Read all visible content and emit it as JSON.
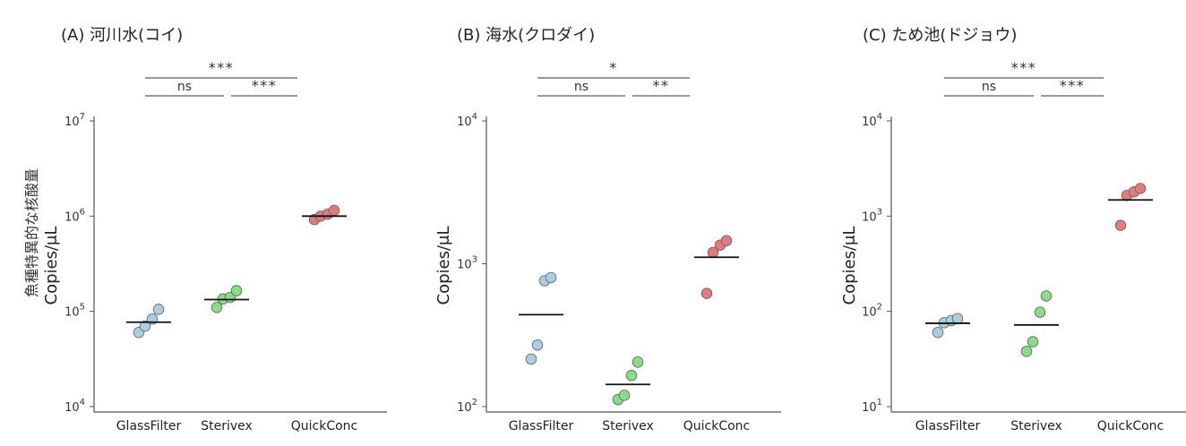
{
  "figure": {
    "shared_ylabel": "魚種特異的な核酸量"
  },
  "chart_data": [
    {
      "type": "scatter",
      "title": "(A) 河川水(コイ)",
      "xlabel": "",
      "ylabel": "Copies/μL",
      "y_scale": "log",
      "ylim_exp": [
        4,
        7
      ],
      "yticks_exp": [
        4,
        5,
        6,
        7
      ],
      "categories": [
        "GlassFilter",
        "Sterivex",
        "QuickConc"
      ],
      "colors": [
        "#a9cfe0",
        "#86df82",
        "#e47a7a"
      ],
      "points": [
        [
          60000,
          70000,
          83000,
          105000
        ],
        [
          110000,
          135000,
          140000,
          165000
        ],
        [
          920000,
          1000000,
          1050000,
          1150000
        ]
      ],
      "means": [
        77000,
        133000,
        1000000
      ],
      "significance": [
        {
          "from": 0,
          "to": 1,
          "label": "ns",
          "level": 1
        },
        {
          "from": 1,
          "to": 2,
          "label": "***",
          "level": 1
        },
        {
          "from": 0,
          "to": 2,
          "label": "***",
          "level": 2
        }
      ]
    },
    {
      "type": "scatter",
      "title": "(B) 海水(クロダイ)",
      "xlabel": "",
      "ylabel": "Copies/μL",
      "y_scale": "log",
      "ylim_exp": [
        2,
        4
      ],
      "yticks_exp": [
        2,
        3,
        4
      ],
      "categories": [
        "GlassFilter",
        "Sterivex",
        "QuickConc"
      ],
      "colors": [
        "#a9cfe0",
        "#86df82",
        "#e47a7a"
      ],
      "points": [
        [
          215,
          270,
          760,
          800
        ],
        [
          112,
          120,
          165,
          205
        ],
        [
          620,
          1200,
          1350,
          1450
        ]
      ],
      "means": [
        440,
        143,
        1110
      ],
      "significance": [
        {
          "from": 0,
          "to": 1,
          "label": "ns",
          "level": 1
        },
        {
          "from": 1,
          "to": 2,
          "label": "**",
          "level": 1
        },
        {
          "from": 0,
          "to": 2,
          "label": "*",
          "level": 2
        }
      ]
    },
    {
      "type": "scatter",
      "title": "(C) ため池(ドジョウ)",
      "xlabel": "",
      "ylabel": "Copies/μL",
      "y_scale": "log",
      "ylim_exp": [
        1,
        4
      ],
      "yticks_exp": [
        1,
        2,
        3,
        4
      ],
      "categories": [
        "GlassFilter",
        "Sterivex",
        "QuickConc"
      ],
      "colors": [
        "#a9cfe0",
        "#86df82",
        "#e47a7a"
      ],
      "points": [
        [
          60,
          76,
          80,
          84
        ],
        [
          38,
          48,
          98,
          145
        ],
        [
          800,
          1650,
          1800,
          1950
        ]
      ],
      "means": [
        75,
        72,
        1480
      ],
      "significance": [
        {
          "from": 0,
          "to": 1,
          "label": "ns",
          "level": 1
        },
        {
          "from": 1,
          "to": 2,
          "label": "***",
          "level": 1
        },
        {
          "from": 0,
          "to": 2,
          "label": "***",
          "level": 2
        }
      ]
    }
  ]
}
